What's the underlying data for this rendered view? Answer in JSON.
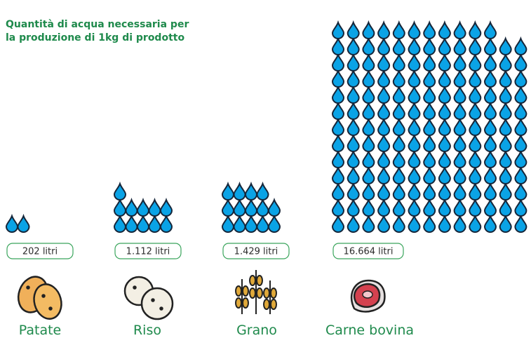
{
  "chart_data": {
    "type": "pictograph",
    "title": "Quantità di acqua necessaria per la produzione di 1kg di prodotto",
    "categories": [
      "Patate",
      "Riso",
      "Grano",
      "Carne bovina"
    ],
    "values": [
      202,
      1112,
      1429,
      16664
    ],
    "value_labels": [
      "202 litri",
      "1.112 litri",
      "1.429 litri",
      "16.664 litri"
    ],
    "color": "#0aa3e6"
  }
}
